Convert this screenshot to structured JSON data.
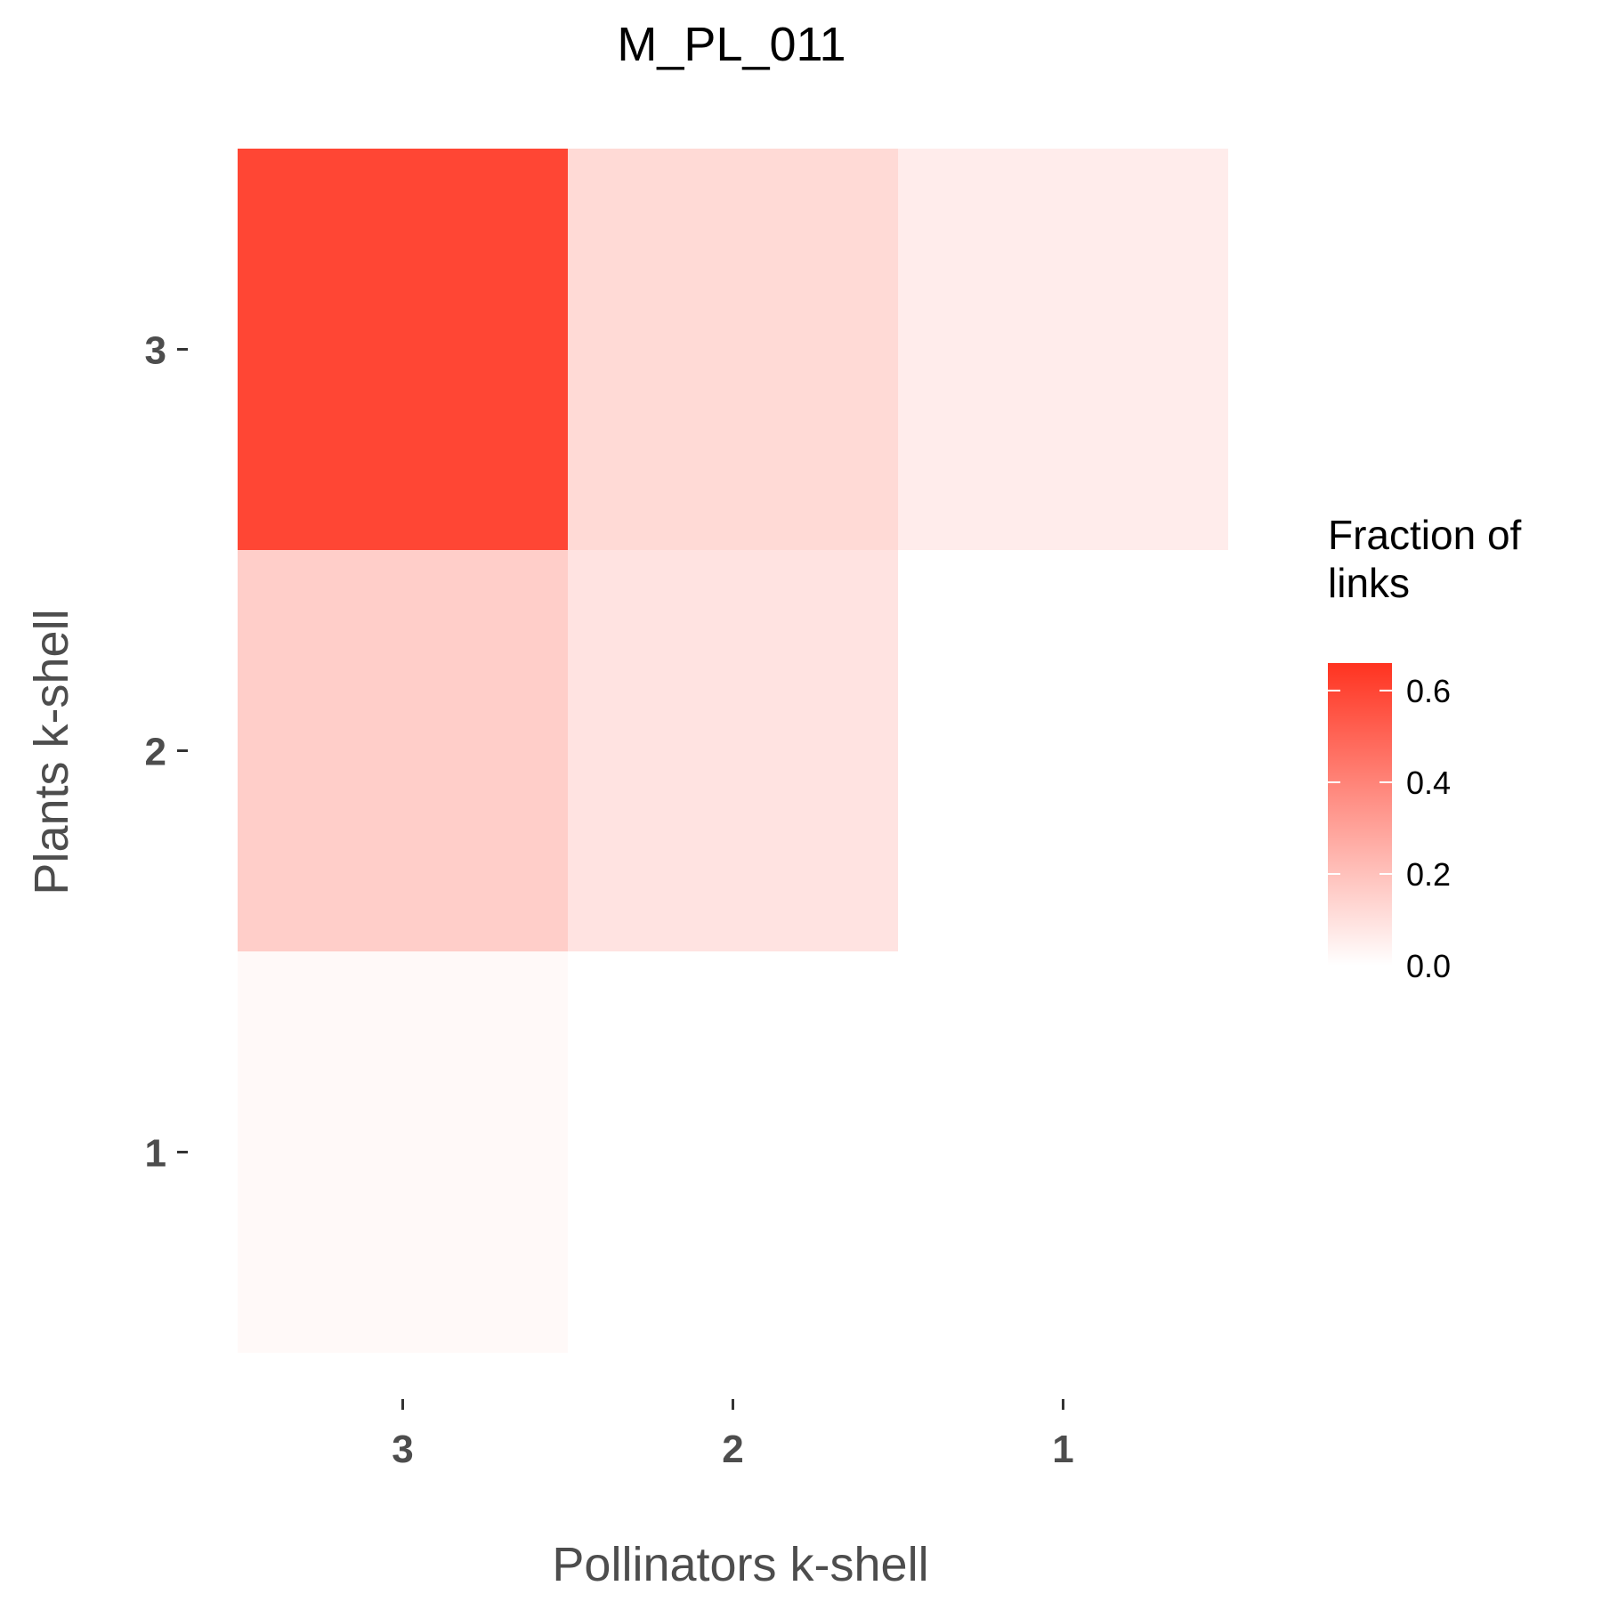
{
  "chart_data": {
    "type": "heatmap",
    "title": "M_PL_011",
    "xlabel": "Pollinators k-shell",
    "ylabel": "Plants k-shell",
    "x_categories": [
      "3",
      "2",
      "1"
    ],
    "y_categories": [
      "3",
      "2",
      "1"
    ],
    "cells": [
      {
        "x": "3",
        "y": "3",
        "value": 0.6
      },
      {
        "x": "2",
        "y": "3",
        "value": 0.12
      },
      {
        "x": "1",
        "y": "3",
        "value": 0.06
      },
      {
        "x": "3",
        "y": "2",
        "value": 0.16
      },
      {
        "x": "2",
        "y": "2",
        "value": 0.09
      },
      {
        "x": "3",
        "y": "1",
        "value": 0.02
      }
    ],
    "legend": {
      "title_lines": [
        "Fraction of",
        "links"
      ],
      "ticks": [
        {
          "value": 0.0,
          "label": "0.0"
        },
        {
          "value": 0.2,
          "label": "0.2"
        },
        {
          "value": 0.4,
          "label": "0.4"
        },
        {
          "value": 0.6,
          "label": "0.6"
        }
      ],
      "range": [
        0,
        0.66
      ],
      "position": "right"
    },
    "colors": {
      "low": "#ffffff",
      "high": "#ff3320"
    },
    "grid": false
  }
}
